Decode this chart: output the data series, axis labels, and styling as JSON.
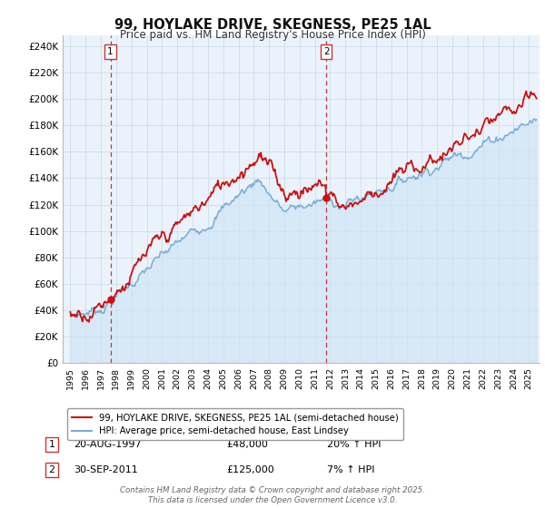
{
  "title": "99, HOYLAKE DRIVE, SKEGNESS, PE25 1AL",
  "subtitle": "Price paid vs. HM Land Registry's House Price Index (HPI)",
  "legend_line1": "99, HOYLAKE DRIVE, SKEGNESS, PE25 1AL (semi-detached house)",
  "legend_line2": "HPI: Average price, semi-detached house, East Lindsey",
  "annotation1_label": "1",
  "annotation1_date": "20-AUG-1997",
  "annotation1_price": "£48,000",
  "annotation1_hpi": "20% ↑ HPI",
  "annotation1_year": 1997.62,
  "annotation1_value": 48000,
  "annotation2_label": "2",
  "annotation2_date": "30-SEP-2011",
  "annotation2_price": "£125,000",
  "annotation2_hpi": "7% ↑ HPI",
  "annotation2_year": 2011.75,
  "annotation2_value": 125000,
  "yticks": [
    0,
    20000,
    40000,
    60000,
    80000,
    100000,
    120000,
    140000,
    160000,
    180000,
    200000,
    220000,
    240000
  ],
  "ytick_labels": [
    "£0",
    "£20K",
    "£40K",
    "£60K",
    "£80K",
    "£100K",
    "£120K",
    "£140K",
    "£160K",
    "£180K",
    "£200K",
    "£220K",
    "£240K"
  ],
  "hpi_color": "#7aadd4",
  "hpi_fill_color": "#d0e4f5",
  "price_color": "#cc1111",
  "vline_color": "#cc3333",
  "background_color": "#ffffff",
  "chart_bg_color": "#eaf3fb",
  "grid_color": "#c8d8e8",
  "footer": "Contains HM Land Registry data © Crown copyright and database right 2025.\nThis data is licensed under the Open Government Licence v3.0."
}
